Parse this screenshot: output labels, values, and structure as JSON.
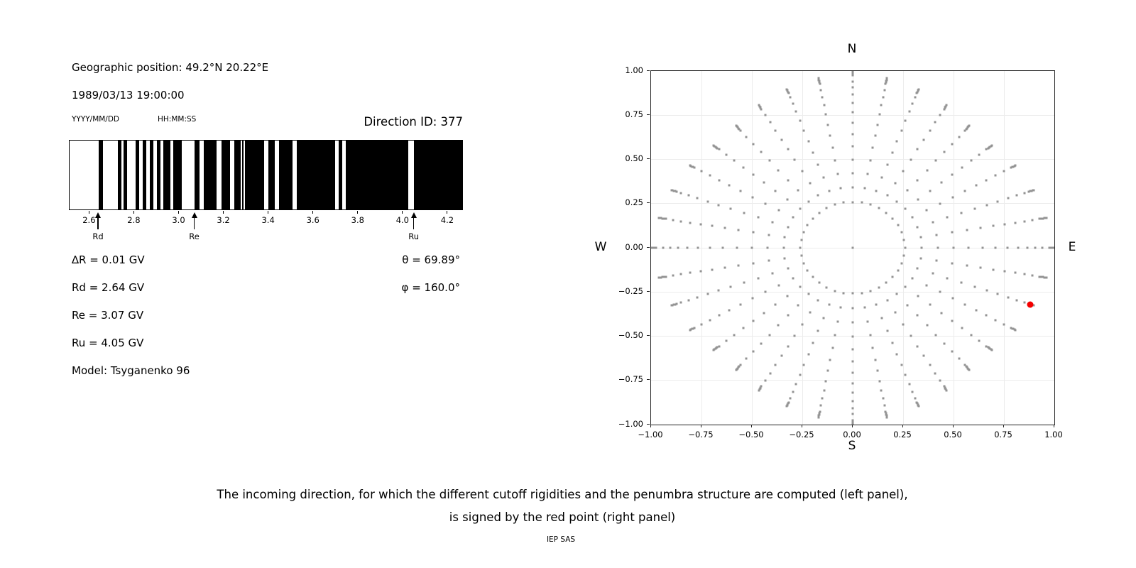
{
  "figure": {
    "background": "#ffffff"
  },
  "left_panel": {
    "geo_position": "Geographic position: 49.2°N 20.22°E",
    "datetime": "1989/03/13 19:00:00",
    "date_format_label": "YYYY/MM/DD",
    "time_format_label": "HH:MM:SS",
    "direction_id_label": "Direction ID: 377",
    "values_left": [
      "∆R = 0.01 GV",
      "Rd = 2.64 GV",
      "Re = 3.07 GV",
      "Ru = 4.05 GV",
      "Model: Tsyganenko 96"
    ],
    "values_right": [
      "θ = 69.89°",
      "φ = 160.0°"
    ]
  },
  "caption": {
    "line1": "The incoming direction, for which the different cutoff rigidities and the penumbra structure are computed (left panel),",
    "line2": "is signed by the red point (right panel)",
    "credit": "IEP SAS"
  },
  "chart_data": [
    {
      "type": "bar",
      "description": "penumbra structure barcode, black = allowed rigidity intervals (GV)",
      "x_range": [
        2.51,
        4.27
      ],
      "x_ticks": [
        2.6,
        2.8,
        3.0,
        3.2,
        3.4,
        3.6,
        3.8,
        4.0,
        4.2
      ],
      "bar_color": "#000000",
      "black_intervals_gv": [
        [
          2.64,
          2.661
        ],
        [
          2.726,
          2.742
        ],
        [
          2.753,
          2.769
        ],
        [
          2.806,
          2.823
        ],
        [
          2.838,
          2.855
        ],
        [
          2.87,
          2.887
        ],
        [
          2.901,
          2.918
        ],
        [
          2.93,
          2.961
        ],
        [
          2.976,
          3.013
        ],
        [
          3.07,
          3.093
        ],
        [
          3.112,
          3.168
        ],
        [
          3.19,
          3.228
        ],
        [
          3.249,
          3.276
        ],
        [
          3.283,
          3.291
        ],
        [
          3.297,
          3.381
        ],
        [
          3.4,
          3.431
        ],
        [
          3.45,
          3.509
        ],
        [
          3.529,
          3.7
        ],
        [
          3.716,
          3.731
        ],
        [
          3.747,
          4.028
        ],
        [
          4.052,
          4.27
        ]
      ],
      "markers": [
        {
          "label": "Rd",
          "x_gv": 2.64
        },
        {
          "label": "Re",
          "x_gv": 3.07
        },
        {
          "label": "Ru",
          "x_gv": 4.05
        }
      ]
    },
    {
      "type": "scatter",
      "description": "incoming direction grid; radius ~ zenith angle, azimuth every 10 degrees",
      "xlim": [
        -1,
        1
      ],
      "ylim": [
        -1,
        1
      ],
      "x_ticks": [
        -1,
        -0.75,
        -0.5,
        -0.25,
        0,
        0.25,
        0.5,
        0.75,
        1
      ],
      "y_ticks": [
        1,
        0.75,
        0.5,
        0.25,
        0,
        -0.25,
        -0.5,
        -0.75,
        -1
      ],
      "compass": {
        "top": "N",
        "right": "E",
        "bottom": "S",
        "left": "W"
      },
      "grid": true,
      "grid_color": "#ececec",
      "dot_color": "#939393",
      "spokes": {
        "count": 36,
        "azimuth_step_deg": 10,
        "base_radii": [
          0.259,
          0.342,
          0.423,
          0.5,
          0.574,
          0.643,
          0.707,
          0.766,
          0.819,
          0.866,
          0.906,
          0.94
        ],
        "tip_radius_pattern_per_10deg": [
          1.0,
          0.975,
          0.955,
          0.93,
          0.9,
          0.9,
          0.93,
          0.955,
          0.975
        ],
        "tip_cluster_offsets": [
          -0.024,
          -0.017,
          -0.011,
          -0.005,
          0
        ],
        "center_dot": true
      },
      "red_point": {
        "x": 0.88,
        "y": -0.32,
        "color": "#f40000",
        "theta_deg": 69.89,
        "phi_deg": 160.0
      }
    }
  ]
}
